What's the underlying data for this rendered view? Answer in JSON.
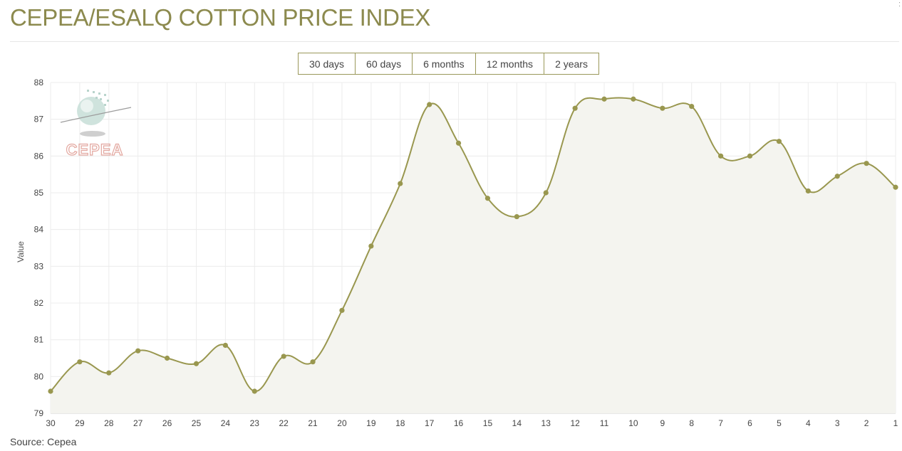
{
  "title": "CEPEA/ESALQ COTTON PRICE INDEX",
  "tabs": [
    {
      "label": "30 days",
      "active": true
    },
    {
      "label": "60 days",
      "active": false
    },
    {
      "label": "6 months",
      "active": false
    },
    {
      "label": "12 months",
      "active": false
    },
    {
      "label": "2 years",
      "active": false
    }
  ],
  "source": "Source: Cepea",
  "logo_text": "CEPEA",
  "corner_mark": ":",
  "colors": {
    "accent": "#9a985a",
    "line": "#99974f",
    "fill": "#f4f4ef",
    "grid": "#ececec"
  },
  "chart_data": {
    "type": "area",
    "title": "",
    "xlabel": "",
    "ylabel": "Value",
    "ylim": [
      79,
      88
    ],
    "yticks": [
      79,
      80,
      81,
      82,
      83,
      84,
      85,
      86,
      87,
      88
    ],
    "grid": true,
    "x": [
      "30",
      "29",
      "28",
      "27",
      "26",
      "25",
      "24",
      "23",
      "22",
      "21",
      "20",
      "19",
      "18",
      "17",
      "16",
      "15",
      "14",
      "13",
      "12",
      "11",
      "10",
      "9",
      "8",
      "7",
      "6",
      "5",
      "4",
      "3",
      "2",
      "1"
    ],
    "series": [
      {
        "values": [
          79.6,
          80.4,
          80.1,
          80.7,
          80.5,
          80.35,
          80.85,
          79.6,
          80.55,
          80.4,
          81.8,
          83.55,
          85.25,
          87.4,
          86.35,
          84.85,
          84.35,
          85.0,
          87.3,
          87.55,
          87.55,
          87.3,
          87.35,
          86.0,
          86.0,
          86.4,
          85.05,
          85.45,
          85.8,
          85.15
        ]
      }
    ]
  }
}
